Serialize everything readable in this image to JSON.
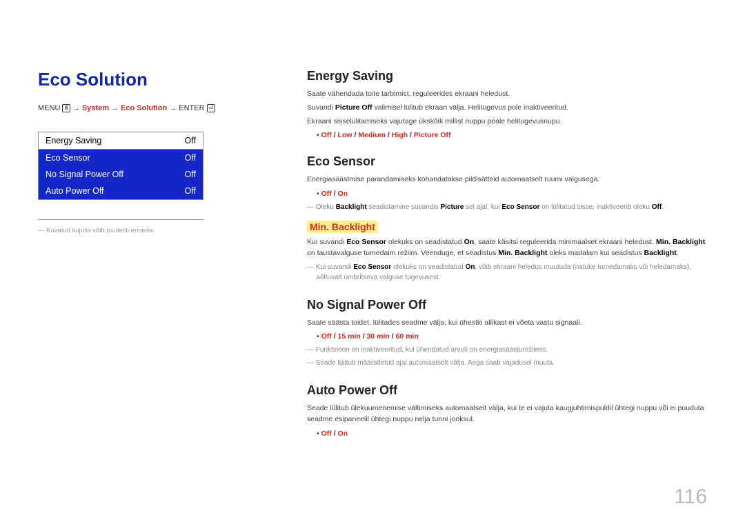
{
  "page": {
    "number": "116"
  },
  "left": {
    "title": "Eco Solution",
    "breadcrumb": {
      "menu": "MENU",
      "icon1": "Ⅲ",
      "p1": "System",
      "p2": "Eco Solution",
      "enter": "ENTER",
      "icon2": "⏎"
    },
    "menu": [
      {
        "label": "Energy Saving",
        "value": "Off"
      },
      {
        "label": "Eco Sensor",
        "value": "Off"
      },
      {
        "label": "No Signal Power Off",
        "value": "Off"
      },
      {
        "label": "Auto Power Off",
        "value": "Off"
      }
    ],
    "footnote": "Kuvatud kujutis võib mudeliti erineda."
  },
  "right": {
    "energy": {
      "title": "Energy Saving",
      "p1": "Saate vähendada toite tarbimist, reguleerides ekraani heledust.",
      "p2a": "Suvandi ",
      "p2b": "Picture Off",
      "p2c": " valimisel lülitub ekraan välja. Helitugevus pole inaktiveeritud.",
      "p3": "Ekraani sisselülitamiseks vajutage ükskõik millist nuppu peale helitugevusnupu.",
      "opts": [
        [
          "Off",
          "Low",
          "Medium",
          "High",
          "Picture Off"
        ]
      ]
    },
    "sensor": {
      "title": "Eco Sensor",
      "p1": "Energiasäästmise parandamiseks kohandatakse pildisätteid automaatselt ruumi valgusega.",
      "opts": [
        [
          "Off",
          "On"
        ]
      ],
      "note1_parts": [
        "Oleku ",
        " Backlight ",
        "seadistamine suvandis ",
        " Picture ",
        "sel ajal, kui ",
        " Eco Sensor ",
        "on lülitatud sisse, inaktiveerib oleku ",
        "Off",
        "."
      ],
      "sub": "Min. Backlight",
      "p2_parts": [
        "Kui suvandi ",
        "Eco Sensor",
        " olekuks on seadistatud ",
        "On",
        ", saate käsitsi reguleerida minimaalset ekraani heledust. ",
        "Min. Backlight",
        " on taustavalguse tumedaim režiim. Veenduge, et seadistus ",
        "Min. Backlight",
        " oleks madalam kui seadistus ",
        "Backlight",
        "."
      ],
      "note2_parts": [
        "Kui suvandi ",
        "Eco Sensor",
        " olekuks on seadistatud ",
        "On",
        ", võib ekraani heledus muutuda (natuke tumedamaks või heledamaks), sõltuvalt ümbritseva valguse tugevusest."
      ]
    },
    "nosignal": {
      "title": "No Signal Power Off",
      "p1": "Saate säästa toidet, lülitades seadme välja, kui ühestki allikast ei võeta vastu signaali.",
      "opts": [
        [
          "Off",
          "15 min",
          "30 min",
          "60 min"
        ]
      ],
      "note1": "Funktsioon on inaktiveeritud, kui ühendatud arvuti on energiasäästurežiimis.",
      "note2": "Seade lülitub määratletud ajal automaatselt välja. Aega saab vajadusel muuta."
    },
    "autopower": {
      "title": "Auto Power Off",
      "p1": "Seade lülitub ülekuumenemise vältimiseks automaatselt välja, kui te ei vajuta kaugjuhtimispuldil ühtegi nuppu või ei puuduta seadme esipaneelil ühtegi nuppu nelja tunni jooksul.",
      "opts": [
        [
          "Off",
          "On"
        ]
      ]
    }
  }
}
